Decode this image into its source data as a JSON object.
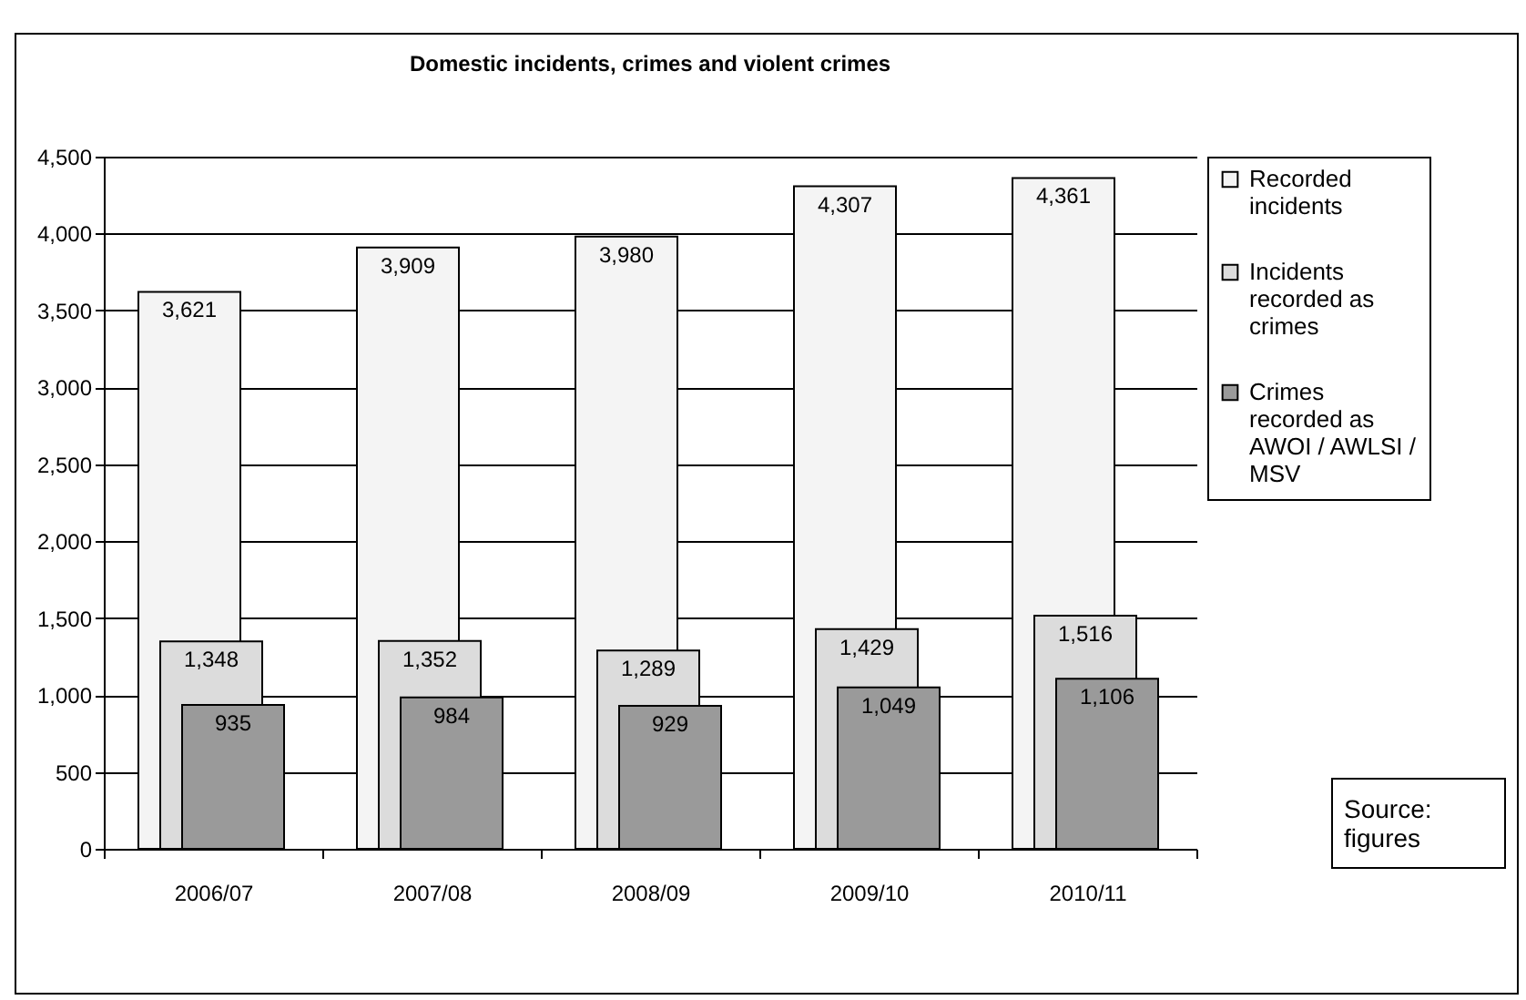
{
  "chart_data": {
    "type": "bar",
    "title": "Domestic incidents, crimes and violent crimes",
    "categories": [
      "2006/07",
      "2007/08",
      "2008/09",
      "2009/10",
      "2010/11"
    ],
    "series": [
      {
        "name": "Recorded incidents",
        "color": "#f4f4f4",
        "values": [
          3621,
          3909,
          3980,
          4307,
          4361
        ],
        "value_labels": [
          "3,621",
          "3,909",
          "3,980",
          "4,307",
          "4,361"
        ]
      },
      {
        "name": "Incidents recorded as crimes",
        "color": "#dcdcdc",
        "values": [
          1348,
          1352,
          1289,
          1429,
          1516
        ],
        "value_labels": [
          "1,348",
          "1,352",
          "1,289",
          "1,429",
          "1,516"
        ]
      },
      {
        "name": "Crimes recorded as AWOI / AWLSI / MSV",
        "color": "#9a9a9a",
        "values": [
          935,
          984,
          929,
          1049,
          1106
        ],
        "value_labels": [
          "935",
          "984",
          "929",
          "1,049",
          "1,106"
        ]
      }
    ],
    "ylim": [
      0,
      4500
    ],
    "yticks": [
      0,
      {
        "value": 500,
        "label": "500"
      },
      {
        "value": 1000,
        "label": "1,000"
      },
      {
        "value": 1500,
        "label": "1,500"
      },
      {
        "value": 2000,
        "label": "2,000"
      },
      {
        "value": 2500,
        "label": "2,500"
      },
      {
        "value": 3000,
        "label": "3,000"
      },
      {
        "value": 3500,
        "label": "3,500"
      },
      {
        "value": 4000,
        "label": "4,000"
      },
      {
        "value": 4500,
        "label": "4,500"
      }
    ],
    "grid": "y",
    "legend": "right",
    "annotations": [
      "Source: figures"
    ]
  }
}
